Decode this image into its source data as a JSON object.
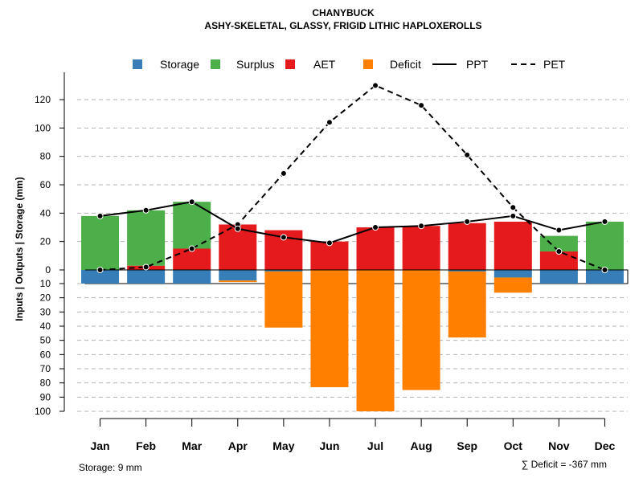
{
  "chart_data": {
    "type": "bar",
    "title": "CHANYBUCK",
    "subtitle": "ASHY-SKELETAL, GLASSY, FRIGID LITHIC HAPLOXEROLLS",
    "ylabel": "Inputs | Outputs | Storage     (mm)",
    "categories": [
      "Jan",
      "Feb",
      "Mar",
      "Apr",
      "May",
      "Jun",
      "Jul",
      "Aug",
      "Sep",
      "Oct",
      "Nov",
      "Dec"
    ],
    "ylim": [
      -100,
      130
    ],
    "yticks_up": [
      0,
      20,
      40,
      60,
      80,
      100,
      120
    ],
    "yticks_down": [
      10,
      20,
      30,
      40,
      50,
      60,
      70,
      80,
      90,
      100
    ],
    "storage_capacity": 9,
    "series": [
      {
        "name": "Storage",
        "kind": "bar",
        "color": "#377EB8",
        "values": [
          -9,
          -9,
          -9,
          -7,
          -1,
          0,
          0,
          0,
          -1,
          -5,
          -9,
          -9
        ]
      },
      {
        "name": "Surplus",
        "kind": "bar",
        "color": "#4DAF4A",
        "values": [
          38,
          39,
          33,
          0,
          0,
          0,
          0,
          0,
          0,
          0,
          11,
          34
        ]
      },
      {
        "name": "AET",
        "kind": "bar",
        "color": "#E41A1C",
        "values": [
          0,
          3,
          15,
          32,
          28,
          20,
          30,
          31,
          33,
          34,
          13,
          0
        ]
      },
      {
        "name": "Deficit",
        "kind": "bar",
        "color": "#FF7F00",
        "values": [
          0,
          0,
          0,
          -1,
          -41,
          -83,
          -100,
          -85,
          -48,
          -10,
          0,
          0
        ]
      },
      {
        "name": "PPT",
        "kind": "line",
        "style": "solid",
        "color": "#000000",
        "values": [
          38,
          42,
          48,
          29,
          23,
          19,
          30,
          31,
          34,
          38,
          28,
          34
        ]
      },
      {
        "name": "PET",
        "kind": "line",
        "style": "dashed",
        "color": "#000000",
        "values": [
          0,
          2,
          15,
          32,
          68,
          104,
          130,
          116,
          81,
          44,
          13,
          0
        ]
      }
    ],
    "legend_position": "top",
    "storage_note": "Storage: 9 mm",
    "deficit_note": "∑ Deficit = -367 mm"
  }
}
